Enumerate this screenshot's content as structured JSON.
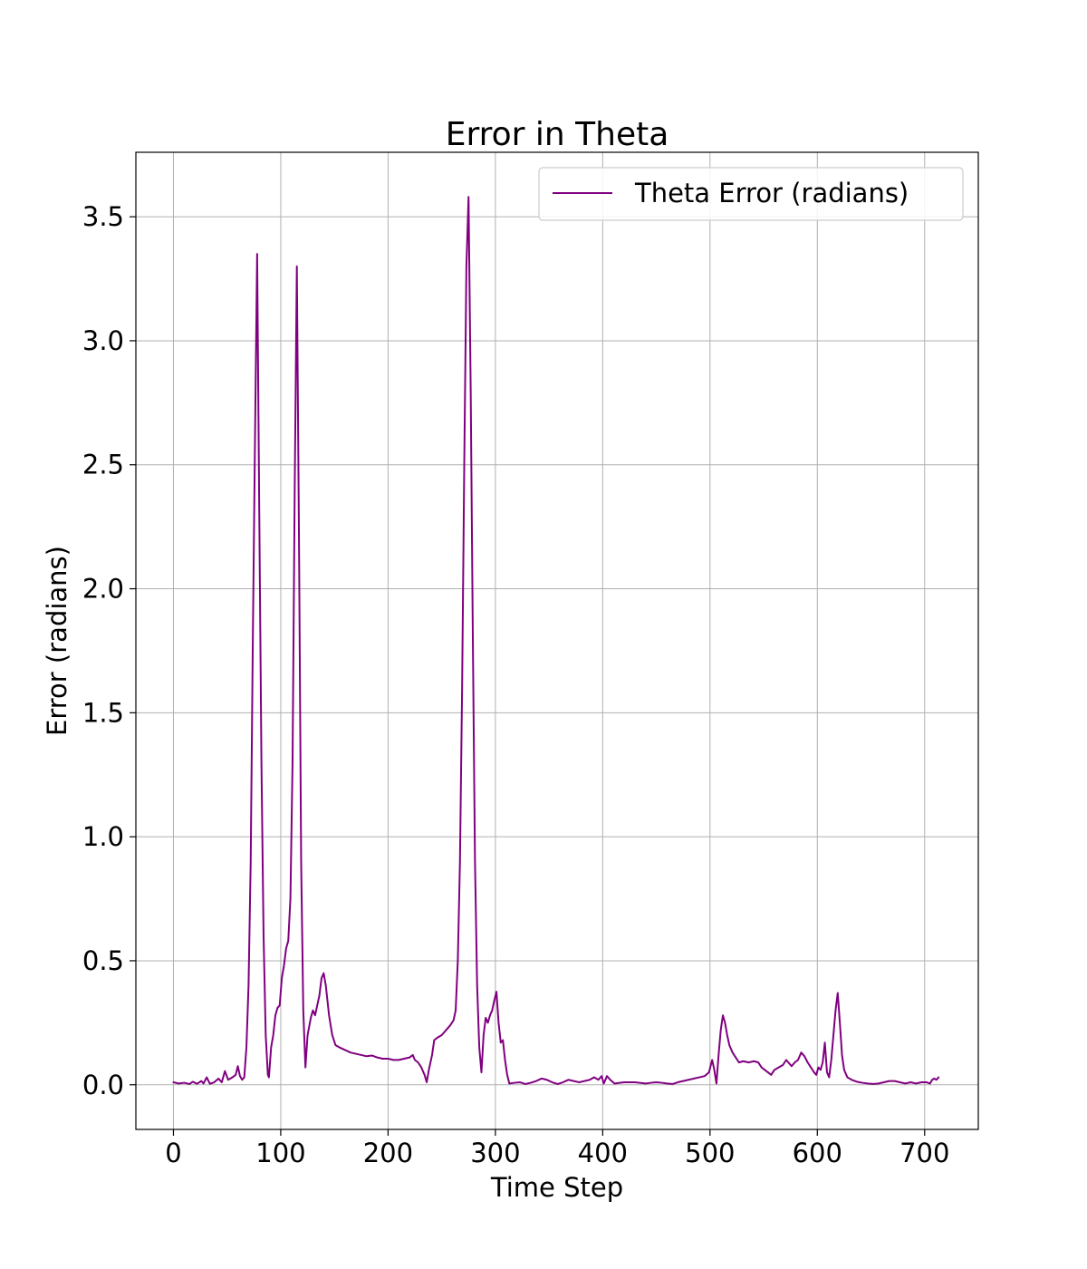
{
  "chart_data": {
    "type": "line",
    "title": "Error in Theta",
    "xlabel": "Time Step",
    "ylabel": "Error (radians)",
    "xlim": [
      -35,
      750
    ],
    "ylim": [
      -0.18,
      3.76
    ],
    "xticks": [
      0,
      100,
      200,
      300,
      400,
      500,
      600,
      700
    ],
    "yticks": [
      0.0,
      0.5,
      1.0,
      1.5,
      2.0,
      2.5,
      3.0,
      3.5
    ],
    "xtick_labels": [
      "0",
      "100",
      "200",
      "300",
      "400",
      "500",
      "600",
      "700"
    ],
    "ytick_labels": [
      "0.0",
      "0.5",
      "1.0",
      "1.5",
      "2.0",
      "2.5",
      "3.0",
      "3.5"
    ],
    "grid": true,
    "legend_position": "top-right",
    "series": [
      {
        "name": "Theta Error (radians)",
        "color": "#800080",
        "points": [
          [
            0,
            0.01
          ],
          [
            5,
            0.005
          ],
          [
            10,
            0.008
          ],
          [
            15,
            0.003
          ],
          [
            18,
            0.012
          ],
          [
            22,
            0.004
          ],
          [
            26,
            0.015
          ],
          [
            28,
            0.005
          ],
          [
            31,
            0.03
          ],
          [
            34,
            0.004
          ],
          [
            38,
            0.01
          ],
          [
            42,
            0.025
          ],
          [
            45,
            0.01
          ],
          [
            48,
            0.055
          ],
          [
            51,
            0.02
          ],
          [
            55,
            0.03
          ],
          [
            58,
            0.04
          ],
          [
            60,
            0.075
          ],
          [
            62,
            0.035
          ],
          [
            64,
            0.02
          ],
          [
            66,
            0.03
          ],
          [
            68,
            0.15
          ],
          [
            70,
            0.4
          ],
          [
            72,
            0.9
          ],
          [
            74,
            1.8
          ],
          [
            76,
            2.6
          ],
          [
            78,
            3.35
          ],
          [
            80,
            2.3
          ],
          [
            82,
            1.3
          ],
          [
            84,
            0.6
          ],
          [
            86,
            0.2
          ],
          [
            88,
            0.04
          ],
          [
            89,
            0.03
          ],
          [
            91,
            0.15
          ],
          [
            93,
            0.2
          ],
          [
            95,
            0.28
          ],
          [
            97,
            0.31
          ],
          [
            99,
            0.32
          ],
          [
            101,
            0.43
          ],
          [
            103,
            0.48
          ],
          [
            105,
            0.55
          ],
          [
            107,
            0.58
          ],
          [
            109,
            0.75
          ],
          [
            111,
            1.3
          ],
          [
            113,
            2.4
          ],
          [
            115,
            3.3
          ],
          [
            117,
            2.2
          ],
          [
            119,
            0.9
          ],
          [
            121,
            0.3
          ],
          [
            123,
            0.07
          ],
          [
            125,
            0.2
          ],
          [
            128,
            0.27
          ],
          [
            130,
            0.3
          ],
          [
            132,
            0.28
          ],
          [
            134,
            0.32
          ],
          [
            136,
            0.36
          ],
          [
            138,
            0.43
          ],
          [
            140,
            0.45
          ],
          [
            142,
            0.4
          ],
          [
            145,
            0.28
          ],
          [
            148,
            0.2
          ],
          [
            151,
            0.16
          ],
          [
            155,
            0.15
          ],
          [
            160,
            0.14
          ],
          [
            165,
            0.13
          ],
          [
            170,
            0.125
          ],
          [
            175,
            0.12
          ],
          [
            180,
            0.115
          ],
          [
            185,
            0.118
          ],
          [
            190,
            0.11
          ],
          [
            195,
            0.105
          ],
          [
            200,
            0.105
          ],
          [
            205,
            0.1
          ],
          [
            210,
            0.1
          ],
          [
            215,
            0.105
          ],
          [
            220,
            0.11
          ],
          [
            223,
            0.12
          ],
          [
            225,
            0.1
          ],
          [
            228,
            0.09
          ],
          [
            231,
            0.07
          ],
          [
            234,
            0.04
          ],
          [
            236,
            0.01
          ],
          [
            238,
            0.06
          ],
          [
            241,
            0.12
          ],
          [
            243,
            0.18
          ],
          [
            246,
            0.19
          ],
          [
            250,
            0.2
          ],
          [
            254,
            0.22
          ],
          [
            258,
            0.24
          ],
          [
            261,
            0.26
          ],
          [
            263,
            0.3
          ],
          [
            265,
            0.5
          ],
          [
            267,
            0.9
          ],
          [
            269,
            1.6
          ],
          [
            271,
            2.5
          ],
          [
            273,
            3.3
          ],
          [
            275,
            3.58
          ],
          [
            277,
            2.8
          ],
          [
            279,
            1.8
          ],
          [
            281,
            0.9
          ],
          [
            283,
            0.4
          ],
          [
            285,
            0.15
          ],
          [
            287,
            0.05
          ],
          [
            289,
            0.2
          ],
          [
            291,
            0.27
          ],
          [
            293,
            0.25
          ],
          [
            295,
            0.28
          ],
          [
            297,
            0.3
          ],
          [
            299,
            0.34
          ],
          [
            301,
            0.375
          ],
          [
            303,
            0.25
          ],
          [
            305,
            0.17
          ],
          [
            307,
            0.18
          ],
          [
            309,
            0.1
          ],
          [
            311,
            0.04
          ],
          [
            313,
            0.005
          ],
          [
            318,
            0.008
          ],
          [
            323,
            0.01
          ],
          [
            328,
            0.003
          ],
          [
            333,
            0.008
          ],
          [
            338,
            0.015
          ],
          [
            343,
            0.025
          ],
          [
            348,
            0.02
          ],
          [
            353,
            0.01
          ],
          [
            358,
            0.003
          ],
          [
            363,
            0.01
          ],
          [
            368,
            0.02
          ],
          [
            373,
            0.015
          ],
          [
            378,
            0.01
          ],
          [
            383,
            0.015
          ],
          [
            388,
            0.02
          ],
          [
            392,
            0.03
          ],
          [
            396,
            0.02
          ],
          [
            399,
            0.035
          ],
          [
            401,
            0.005
          ],
          [
            404,
            0.035
          ],
          [
            407,
            0.02
          ],
          [
            411,
            0.005
          ],
          [
            420,
            0.01
          ],
          [
            430,
            0.01
          ],
          [
            440,
            0.005
          ],
          [
            445,
            0.008
          ],
          [
            450,
            0.01
          ],
          [
            455,
            0.008
          ],
          [
            460,
            0.005
          ],
          [
            465,
            0.003
          ],
          [
            470,
            0.01
          ],
          [
            475,
            0.015
          ],
          [
            480,
            0.02
          ],
          [
            485,
            0.025
          ],
          [
            490,
            0.03
          ],
          [
            495,
            0.035
          ],
          [
            499,
            0.05
          ],
          [
            502,
            0.1
          ],
          [
            504,
            0.06
          ],
          [
            506,
            0.005
          ],
          [
            508,
            0.12
          ],
          [
            510,
            0.22
          ],
          [
            512,
            0.28
          ],
          [
            514,
            0.25
          ],
          [
            516,
            0.2
          ],
          [
            518,
            0.16
          ],
          [
            521,
            0.13
          ],
          [
            524,
            0.11
          ],
          [
            527,
            0.09
          ],
          [
            531,
            0.095
          ],
          [
            536,
            0.09
          ],
          [
            541,
            0.095
          ],
          [
            545,
            0.09
          ],
          [
            548,
            0.07
          ],
          [
            551,
            0.06
          ],
          [
            554,
            0.05
          ],
          [
            557,
            0.04
          ],
          [
            560,
            0.06
          ],
          [
            564,
            0.07
          ],
          [
            568,
            0.08
          ],
          [
            571,
            0.1
          ],
          [
            573,
            0.09
          ],
          [
            576,
            0.075
          ],
          [
            579,
            0.09
          ],
          [
            582,
            0.1
          ],
          [
            585,
            0.13
          ],
          [
            588,
            0.115
          ],
          [
            591,
            0.09
          ],
          [
            594,
            0.07
          ],
          [
            597,
            0.05
          ],
          [
            599,
            0.04
          ],
          [
            601,
            0.07
          ],
          [
            603,
            0.06
          ],
          [
            605,
            0.09
          ],
          [
            607,
            0.17
          ],
          [
            609,
            0.05
          ],
          [
            611,
            0.03
          ],
          [
            613,
            0.1
          ],
          [
            615,
            0.2
          ],
          [
            617,
            0.3
          ],
          [
            619,
            0.37
          ],
          [
            621,
            0.25
          ],
          [
            623,
            0.12
          ],
          [
            625,
            0.06
          ],
          [
            628,
            0.03
          ],
          [
            632,
            0.02
          ],
          [
            637,
            0.012
          ],
          [
            642,
            0.008
          ],
          [
            647,
            0.005
          ],
          [
            652,
            0.003
          ],
          [
            657,
            0.005
          ],
          [
            662,
            0.01
          ],
          [
            667,
            0.015
          ],
          [
            672,
            0.015
          ],
          [
            677,
            0.01
          ],
          [
            682,
            0.005
          ],
          [
            687,
            0.01
          ],
          [
            692,
            0.005
          ],
          [
            697,
            0.01
          ],
          [
            702,
            0.01
          ],
          [
            705,
            0.005
          ],
          [
            707,
            0.02
          ],
          [
            709,
            0.025
          ],
          [
            711,
            0.02
          ],
          [
            713,
            0.03
          ]
        ]
      }
    ]
  }
}
